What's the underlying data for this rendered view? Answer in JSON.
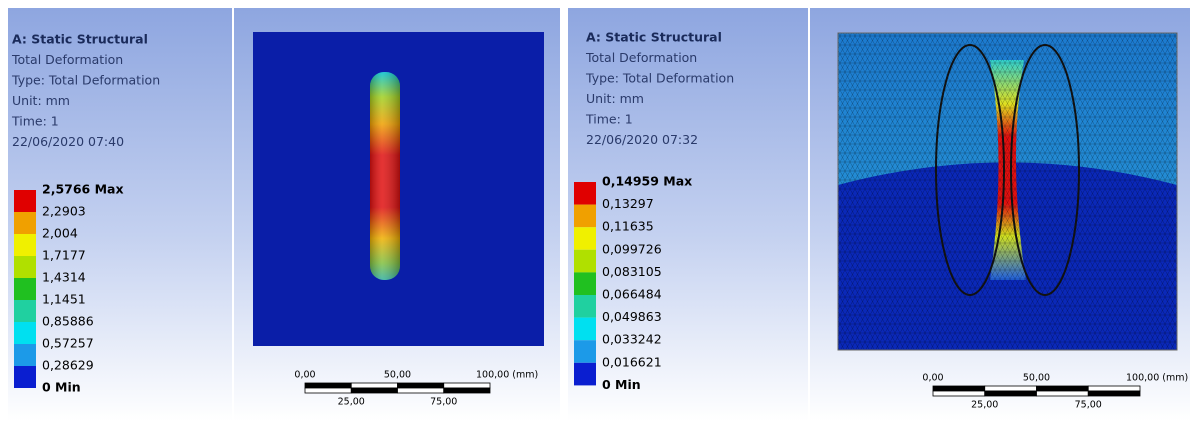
{
  "panels": [
    {
      "info": {
        "title": "A: Static Structural",
        "lines": [
          "Total Deformation",
          "Type: Total Deformation",
          "Unit: mm",
          "Time: 1",
          "22/06/2020 07:40"
        ]
      },
      "legend": [
        "2,5766 Max",
        "2,2903",
        "2,004",
        "1,7177",
        "1,4314",
        "1,1451",
        "0,85886",
        "0,57257",
        "0,28629",
        "0 Min"
      ],
      "scale": {
        "top": [
          "0,00",
          "50,00",
          "100,00 (mm)"
        ],
        "bottom": [
          "25,00",
          "75,00"
        ]
      }
    },
    {
      "info": {
        "title": "A: Static Structural",
        "lines": [
          "Total Deformation",
          "Type: Total Deformation",
          "Unit: mm",
          "Time: 1",
          "22/06/2020 07:32"
        ]
      },
      "legend": [
        "0,14959 Max",
        "0,13297",
        "0,11635",
        "0,099726",
        "0,083105",
        "0,066484",
        "0,049863",
        "0,033242",
        "0,016621",
        "0 Min"
      ],
      "scale": {
        "top": [
          "0,00",
          "50,00",
          "100,00 (mm)"
        ],
        "bottom": [
          "25,00",
          "75,00"
        ]
      }
    }
  ]
}
